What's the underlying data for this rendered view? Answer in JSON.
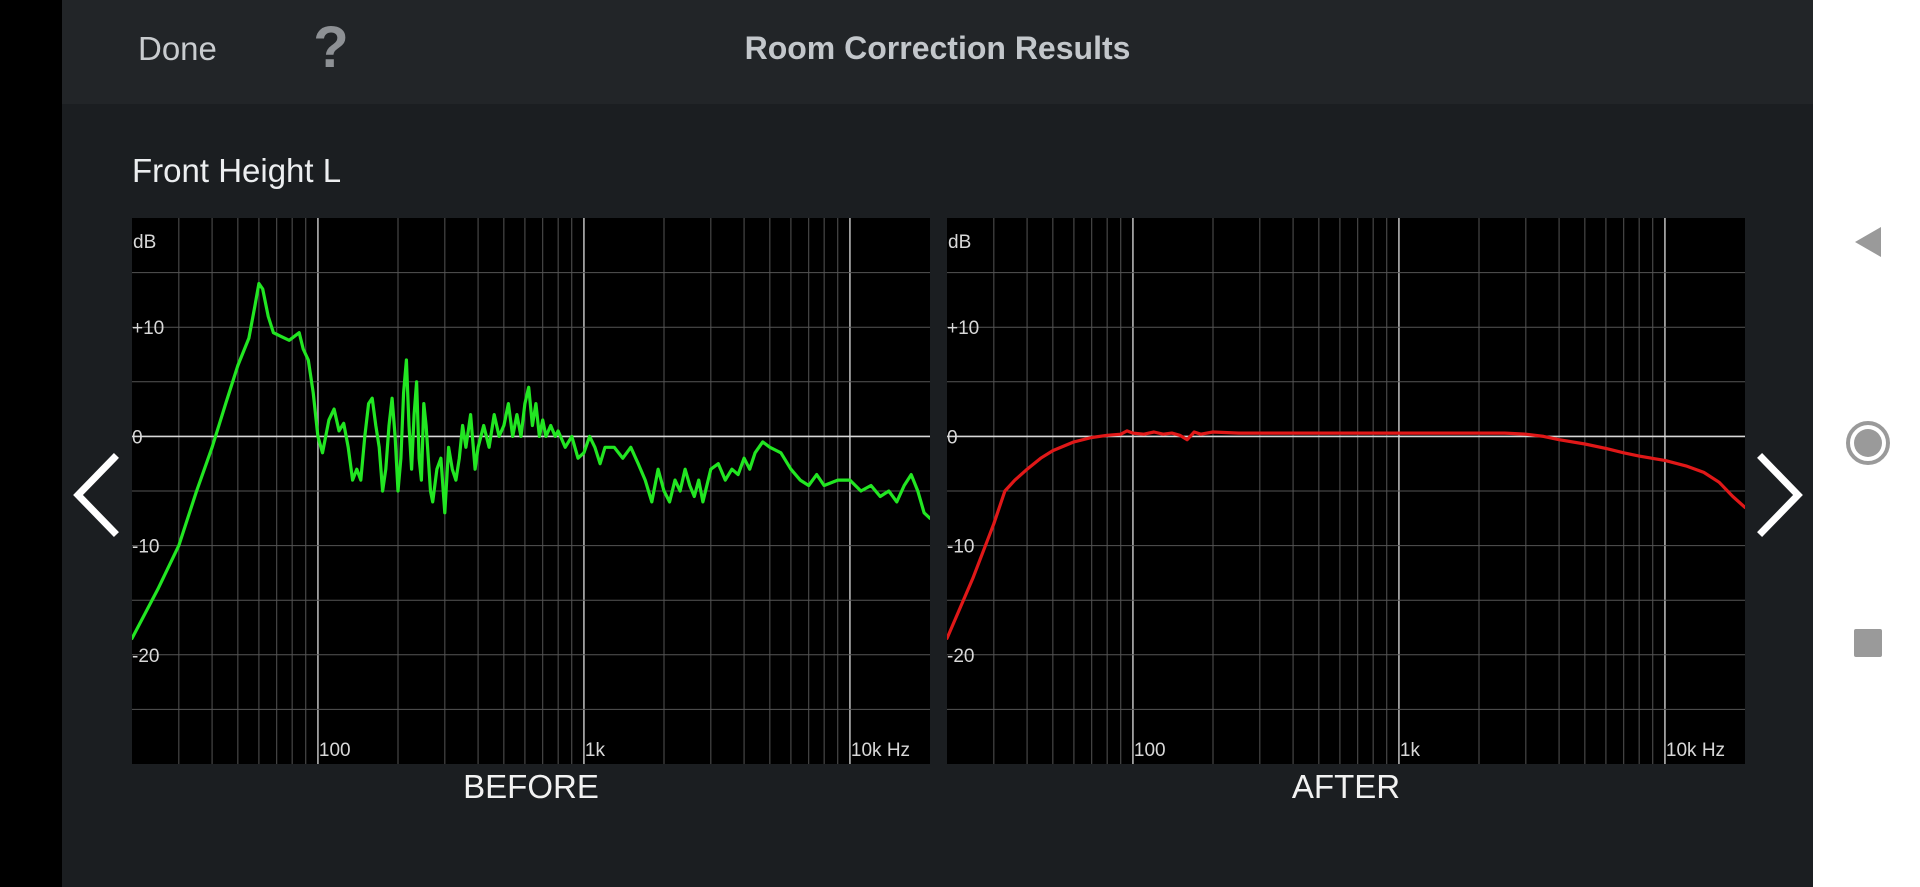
{
  "header": {
    "done_label": "Done",
    "help_label": "?",
    "title": "Room Correction Results"
  },
  "channel_name": "Front Height L",
  "charts": {
    "before_caption": "BEFORE",
    "after_caption": "AFTER"
  },
  "icons": {
    "prev": "chevron-left-icon",
    "next": "chevron-right-icon",
    "help": "question-mark-icon",
    "nav_back": "triangle-back-icon",
    "nav_home": "circle-home-icon",
    "nav_recents": "square-recents-icon"
  },
  "colors": {
    "before_line": "#22e622",
    "after_line": "#e01818",
    "app_background": "#1b1e21",
    "header_background": "#222528"
  },
  "chart_data": [
    {
      "type": "line",
      "title": "BEFORE",
      "xlabel": "Hz",
      "ylabel": "dB",
      "x_scale": "log",
      "xlim": [
        20,
        20000
      ],
      "ylim": [
        -30,
        20
      ],
      "x_ticks": [
        {
          "value": 100,
          "label": "100"
        },
        {
          "value": 1000,
          "label": "1k"
        },
        {
          "value": 10000,
          "label": "10k Hz"
        }
      ],
      "y_ticks": [
        {
          "value": 10,
          "label": "+10"
        },
        {
          "value": 0,
          "label": "0"
        },
        {
          "value": -10,
          "label": "-10"
        },
        {
          "value": -20,
          "label": "-20"
        }
      ],
      "y_unit_label": "dB",
      "grid": true,
      "series": [
        {
          "color": "#22e622",
          "points": [
            [
              20,
              -18.5
            ],
            [
              25,
              -14
            ],
            [
              30,
              -10
            ],
            [
              35,
              -5
            ],
            [
              40,
              -1
            ],
            [
              45,
              3
            ],
            [
              50,
              6.5
            ],
            [
              55,
              9
            ],
            [
              58,
              12
            ],
            [
              60,
              14
            ],
            [
              62,
              13.5
            ],
            [
              65,
              11
            ],
            [
              68,
              9.5
            ],
            [
              72,
              9.2
            ],
            [
              78,
              8.8
            ],
            [
              85,
              9.5
            ],
            [
              88,
              8
            ],
            [
              92,
              7
            ],
            [
              96,
              4
            ],
            [
              100,
              0
            ],
            [
              104,
              -1.5
            ],
            [
              110,
              1.5
            ],
            [
              115,
              2.5
            ],
            [
              120,
              0.5
            ],
            [
              125,
              1.2
            ],
            [
              130,
              -1
            ],
            [
              135,
              -4
            ],
            [
              140,
              -3
            ],
            [
              145,
              -4
            ],
            [
              150,
              0
            ],
            [
              155,
              3
            ],
            [
              160,
              3.5
            ],
            [
              165,
              1
            ],
            [
              170,
              -1
            ],
            [
              175,
              -5
            ],
            [
              180,
              -3
            ],
            [
              185,
              1
            ],
            [
              190,
              3.5
            ],
            [
              195,
              0
            ],
            [
              200,
              -5
            ],
            [
              205,
              -2
            ],
            [
              210,
              4
            ],
            [
              215,
              7
            ],
            [
              220,
              1
            ],
            [
              225,
              -3
            ],
            [
              230,
              2
            ],
            [
              235,
              5
            ],
            [
              240,
              -2
            ],
            [
              245,
              -4
            ],
            [
              250,
              3
            ],
            [
              255,
              1
            ],
            [
              260,
              -2
            ],
            [
              265,
              -5
            ],
            [
              270,
              -6
            ],
            [
              280,
              -3
            ],
            [
              290,
              -2
            ],
            [
              300,
              -7
            ],
            [
              310,
              -1
            ],
            [
              320,
              -3
            ],
            [
              330,
              -4
            ],
            [
              340,
              -2
            ],
            [
              350,
              1
            ],
            [
              360,
              -1
            ],
            [
              375,
              2
            ],
            [
              390,
              -3
            ],
            [
              400,
              -1
            ],
            [
              420,
              1
            ],
            [
              440,
              -1
            ],
            [
              460,
              2
            ],
            [
              480,
              0
            ],
            [
              500,
              1
            ],
            [
              520,
              3
            ],
            [
              540,
              0
            ],
            [
              560,
              2
            ],
            [
              580,
              0
            ],
            [
              600,
              3
            ],
            [
              620,
              4.5
            ],
            [
              640,
              1
            ],
            [
              660,
              3
            ],
            [
              680,
              0
            ],
            [
              700,
              1.5
            ],
            [
              720,
              0
            ],
            [
              750,
              1
            ],
            [
              780,
              0
            ],
            [
              800,
              0.5
            ],
            [
              850,
              -1
            ],
            [
              900,
              0
            ],
            [
              950,
              -2
            ],
            [
              1000,
              -1.5
            ],
            [
              1050,
              0
            ],
            [
              1100,
              -1
            ],
            [
              1150,
              -2.5
            ],
            [
              1200,
              -1
            ],
            [
              1300,
              -1
            ],
            [
              1400,
              -2
            ],
            [
              1500,
              -1
            ],
            [
              1600,
              -2.5
            ],
            [
              1700,
              -4
            ],
            [
              1800,
              -6
            ],
            [
              1900,
              -3
            ],
            [
              2000,
              -5
            ],
            [
              2100,
              -6
            ],
            [
              2200,
              -4
            ],
            [
              2300,
              -5
            ],
            [
              2400,
              -3
            ],
            [
              2500,
              -4.5
            ],
            [
              2600,
              -5.5
            ],
            [
              2700,
              -4
            ],
            [
              2800,
              -6
            ],
            [
              3000,
              -3
            ],
            [
              3200,
              -2.5
            ],
            [
              3400,
              -4
            ],
            [
              3600,
              -3
            ],
            [
              3800,
              -3.5
            ],
            [
              4000,
              -2
            ],
            [
              4200,
              -3
            ],
            [
              4400,
              -1.5
            ],
            [
              4700,
              -0.5
            ],
            [
              5000,
              -1
            ],
            [
              5500,
              -1.5
            ],
            [
              6000,
              -3
            ],
            [
              6500,
              -4
            ],
            [
              7000,
              -4.5
            ],
            [
              7500,
              -3.5
            ],
            [
              8000,
              -4.5
            ],
            [
              9000,
              -4
            ],
            [
              10000,
              -4
            ],
            [
              11000,
              -5
            ],
            [
              12000,
              -4.5
            ],
            [
              13000,
              -5.5
            ],
            [
              14000,
              -5
            ],
            [
              15000,
              -6
            ],
            [
              16000,
              -4.5
            ],
            [
              17000,
              -3.5
            ],
            [
              18000,
              -5
            ],
            [
              19000,
              -7
            ],
            [
              20000,
              -7.5
            ]
          ]
        }
      ]
    },
    {
      "type": "line",
      "title": "AFTER",
      "xlabel": "Hz",
      "ylabel": "dB",
      "x_scale": "log",
      "xlim": [
        20,
        20000
      ],
      "ylim": [
        -30,
        20
      ],
      "x_ticks": [
        {
          "value": 100,
          "label": "100"
        },
        {
          "value": 1000,
          "label": "1k"
        },
        {
          "value": 10000,
          "label": "10k Hz"
        }
      ],
      "y_ticks": [
        {
          "value": 10,
          "label": "+10"
        },
        {
          "value": 0,
          "label": "0"
        },
        {
          "value": -10,
          "label": "-10"
        },
        {
          "value": -20,
          "label": "-20"
        }
      ],
      "y_unit_label": "dB",
      "grid": true,
      "series": [
        {
          "color": "#e01818",
          "points": [
            [
              20,
              -18.5
            ],
            [
              25,
              -13
            ],
            [
              30,
              -8
            ],
            [
              33,
              -5
            ],
            [
              36,
              -4
            ],
            [
              40,
              -3
            ],
            [
              45,
              -2
            ],
            [
              50,
              -1.3
            ],
            [
              60,
              -0.5
            ],
            [
              70,
              -0.1
            ],
            [
              80,
              0.1
            ],
            [
              90,
              0.2
            ],
            [
              95,
              0.5
            ],
            [
              100,
              0.3
            ],
            [
              110,
              0.2
            ],
            [
              120,
              0.4
            ],
            [
              130,
              0.2
            ],
            [
              140,
              0.3
            ],
            [
              150,
              0.1
            ],
            [
              160,
              -0.3
            ],
            [
              170,
              0.4
            ],
            [
              180,
              0.2
            ],
            [
              200,
              0.4
            ],
            [
              250,
              0.3
            ],
            [
              300,
              0.3
            ],
            [
              400,
              0.3
            ],
            [
              500,
              0.3
            ],
            [
              700,
              0.3
            ],
            [
              1000,
              0.3
            ],
            [
              1500,
              0.3
            ],
            [
              2000,
              0.3
            ],
            [
              2500,
              0.3
            ],
            [
              3000,
              0.2
            ],
            [
              3500,
              0
            ],
            [
              4000,
              -0.3
            ],
            [
              5000,
              -0.7
            ],
            [
              6000,
              -1.1
            ],
            [
              7000,
              -1.5
            ],
            [
              8000,
              -1.8
            ],
            [
              10000,
              -2.2
            ],
            [
              12000,
              -2.7
            ],
            [
              14000,
              -3.3
            ],
            [
              16000,
              -4.2
            ],
            [
              18000,
              -5.5
            ],
            [
              20000,
              -6.5
            ]
          ]
        }
      ]
    }
  ]
}
